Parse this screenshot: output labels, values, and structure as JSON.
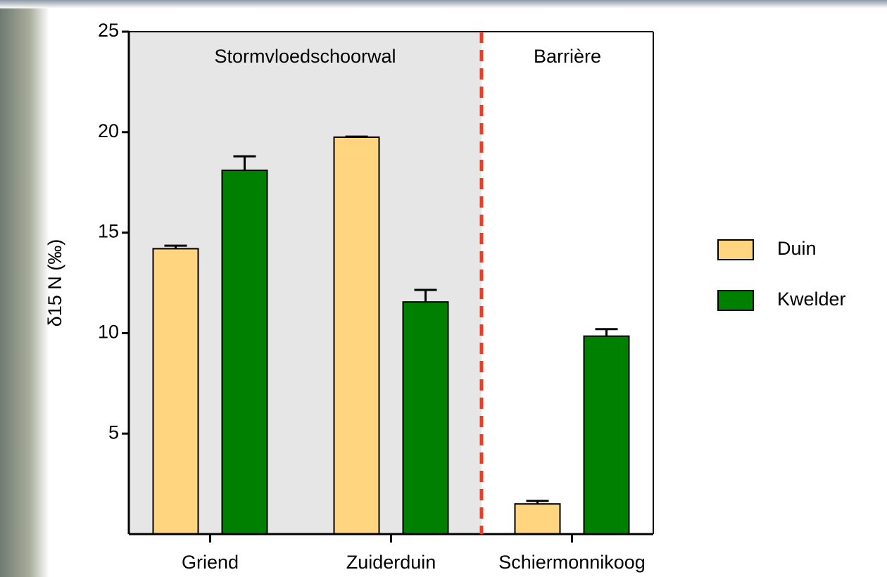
{
  "chart_data": {
    "type": "bar",
    "ylabel": "δ15 N (‰)",
    "categories": [
      "Griend",
      "Zuiderduin",
      "Schiermonnikoog"
    ],
    "series": [
      {
        "name": "Duin",
        "color": "#ffd580",
        "values": [
          14.2,
          19.75,
          1.5
        ],
        "errors": [
          0.15,
          0.03,
          0.15
        ]
      },
      {
        "name": "Kwelder",
        "color": "#008000",
        "values": [
          18.1,
          11.55,
          9.85
        ],
        "errors": [
          0.7,
          0.6,
          0.35
        ]
      }
    ],
    "regions": [
      {
        "label": "Stormvloedschoorwal",
        "shaded": true
      },
      {
        "label": "Barrière",
        "shaded": false
      }
    ],
    "ylim": [
      0,
      25
    ],
    "yticks": [
      5,
      10,
      15,
      20,
      25
    ],
    "legend": "right"
  }
}
